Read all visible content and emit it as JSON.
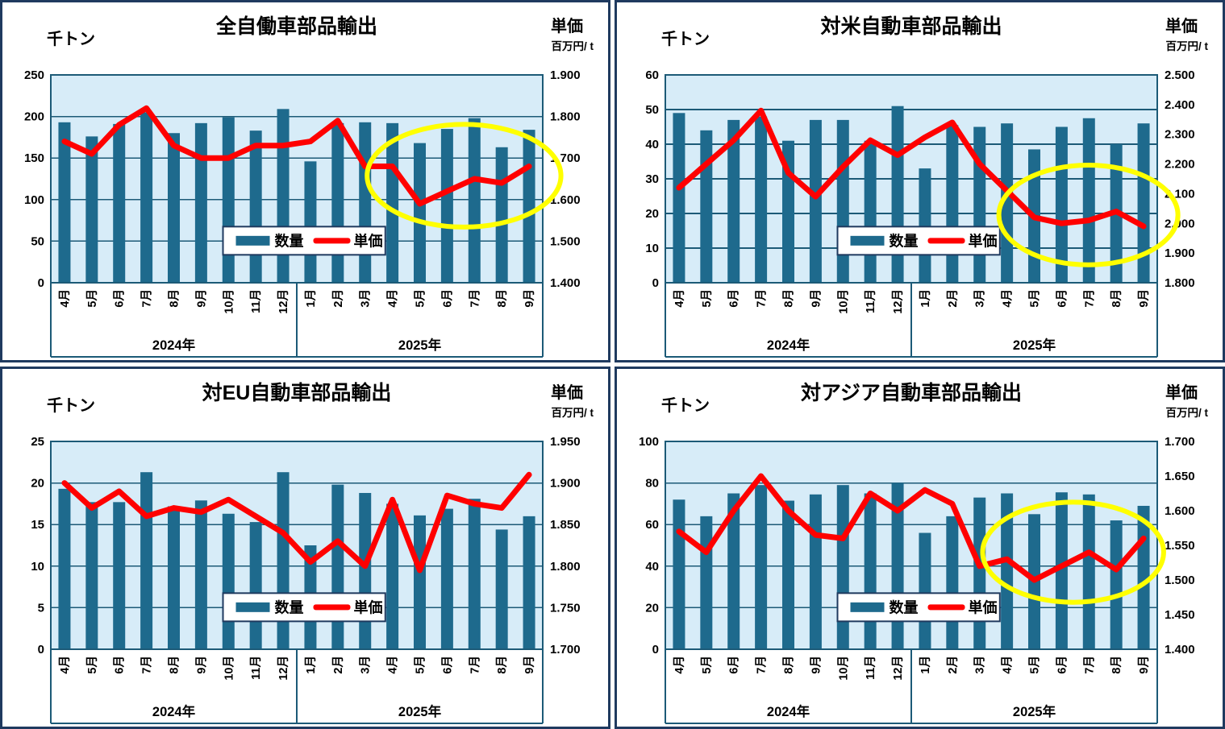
{
  "colors": {
    "bar": "#1E6A8D",
    "line": "#FF0000",
    "plot_bg": "#D7ECF8",
    "grid": "#1C5A77",
    "panel_border": "#1F3A5F",
    "highlight": "#FFFF00",
    "text": "#000000",
    "legend_bg": "#FFFFFF"
  },
  "x_axis": {
    "months": [
      "4月",
      "5月",
      "6月",
      "7月",
      "8月",
      "9月",
      "10月",
      "11月",
      "12月",
      "1月",
      "2月",
      "3月",
      "4月",
      "5月",
      "6月",
      "7月",
      "8月",
      "9月"
    ],
    "year_groups": [
      "2024年",
      "2025年"
    ]
  },
  "legend": {
    "bar_label": "数量",
    "line_label": "単価"
  },
  "chart_data": [
    {
      "type": "combo-bar-line",
      "title": "全自働車部品輸出",
      "left_axis": {
        "label": "千トン",
        "ticks": [
          "250",
          "200",
          "150",
          "100",
          "50",
          "0"
        ],
        "max": 250,
        "min": 0
      },
      "right_axis": {
        "label": "単価",
        "sublabel": "百万円/ t",
        "ticks": [
          "1.900",
          "1.800",
          "1.700",
          "1.600",
          "1.500",
          "1.400"
        ],
        "max": 1.9,
        "min": 1.4
      },
      "series": [
        {
          "name": "数量",
          "type": "bar",
          "axis": "left",
          "values": [
            193,
            176,
            191,
            205,
            180,
            192,
            199,
            183,
            209,
            146,
            192,
            193,
            192,
            168,
            185,
            198,
            163,
            184
          ]
        },
        {
          "name": "単価",
          "type": "line",
          "axis": "right",
          "values": [
            1.74,
            1.71,
            1.78,
            1.82,
            1.73,
            1.7,
            1.7,
            1.73,
            1.73,
            1.74,
            1.79,
            1.68,
            1.68,
            1.59,
            1.62,
            1.65,
            1.64,
            1.68
          ]
        }
      ],
      "highlight_ellipse": {
        "cx_frac": 0.84,
        "cy_frac": 0.485,
        "rx_frac": 0.197,
        "ry_frac": 0.247
      }
    },
    {
      "type": "combo-bar-line",
      "title": "対米自動車部品輸出",
      "left_axis": {
        "label": "千トン",
        "ticks": [
          "60",
          "50",
          "40",
          "30",
          "20",
          "10",
          "0"
        ],
        "max": 60,
        "min": 0
      },
      "right_axis": {
        "label": "単価",
        "sublabel": "百万円/ t",
        "ticks": [
          "2.500",
          "2.400",
          "2.300",
          "2.200",
          "2.100",
          "2.000",
          "1.900",
          "1.800"
        ],
        "max": 2.5,
        "min": 1.8
      },
      "series": [
        {
          "name": "数量",
          "type": "bar",
          "axis": "left",
          "values": [
            49,
            44,
            47,
            48,
            41,
            47,
            47,
            41,
            51,
            33,
            45.5,
            45,
            46,
            38.5,
            45,
            47.5,
            40,
            46
          ]
        },
        {
          "name": "単価",
          "type": "line",
          "axis": "right",
          "values": [
            2.12,
            2.2,
            2.28,
            2.38,
            2.17,
            2.09,
            2.19,
            2.28,
            2.23,
            2.29,
            2.34,
            2.2,
            2.11,
            2.02,
            2.0,
            2.01,
            2.04,
            1.99
          ]
        }
      ],
      "highlight_ellipse": {
        "cx_frac": 0.86,
        "cy_frac": 0.674,
        "rx_frac": 0.182,
        "ry_frac": 0.24
      }
    },
    {
      "type": "combo-bar-line",
      "title": "対EU自動車部品輸出",
      "left_axis": {
        "label": "千トン",
        "ticks": [
          "25",
          "20",
          "15",
          "10",
          "5",
          "0"
        ],
        "max": 25,
        "min": 0
      },
      "right_axis": {
        "label": "単価",
        "sublabel": "百万円/ t",
        "ticks": [
          "1.950",
          "1.900",
          "1.850",
          "1.800",
          "1.750",
          "1.700"
        ],
        "max": 1.95,
        "min": 1.7
      },
      "series": [
        {
          "name": "数量",
          "type": "bar",
          "axis": "left",
          "values": [
            19.3,
            17.7,
            17.7,
            21.3,
            17.2,
            17.9,
            16.3,
            15.3,
            21.3,
            12.5,
            19.8,
            18.8,
            17.5,
            16.1,
            16.9,
            18.1,
            14.4,
            16.0
          ]
        },
        {
          "name": "単価",
          "type": "line",
          "axis": "right",
          "values": [
            1.9,
            1.87,
            1.89,
            1.86,
            1.87,
            1.865,
            1.88,
            1.86,
            1.84,
            1.805,
            1.83,
            1.8,
            1.88,
            1.795,
            1.885,
            1.875,
            1.87,
            1.91
          ]
        }
      ],
      "highlight_ellipse": null
    },
    {
      "type": "combo-bar-line",
      "title": "対アジア自動車部品輸出",
      "left_axis": {
        "label": "千トン",
        "ticks": [
          "100",
          "80",
          "60",
          "40",
          "20",
          "0"
        ],
        "max": 100,
        "min": 0
      },
      "right_axis": {
        "label": "単価",
        "sublabel": "百万円/ t",
        "ticks": [
          "1.700",
          "1.650",
          "1.600",
          "1.550",
          "1.500",
          "1.450",
          "1.400"
        ],
        "max": 1.7,
        "min": 1.4
      },
      "series": [
        {
          "name": "数量",
          "type": "bar",
          "axis": "left",
          "values": [
            72,
            64,
            75,
            79,
            71.5,
            74.5,
            79,
            75,
            80,
            56,
            64,
            73,
            75,
            65,
            75.5,
            74.5,
            62,
            69
          ]
        },
        {
          "name": "単価",
          "type": "line",
          "axis": "right",
          "values": [
            1.57,
            1.54,
            1.6,
            1.65,
            1.6,
            1.565,
            1.56,
            1.625,
            1.6,
            1.63,
            1.61,
            1.52,
            1.53,
            1.5,
            1.52,
            1.54,
            1.515,
            1.56
          ]
        }
      ],
      "highlight_ellipse": {
        "cx_frac": 0.829,
        "cy_frac": 0.533,
        "rx_frac": 0.184,
        "ry_frac": 0.241
      }
    }
  ]
}
